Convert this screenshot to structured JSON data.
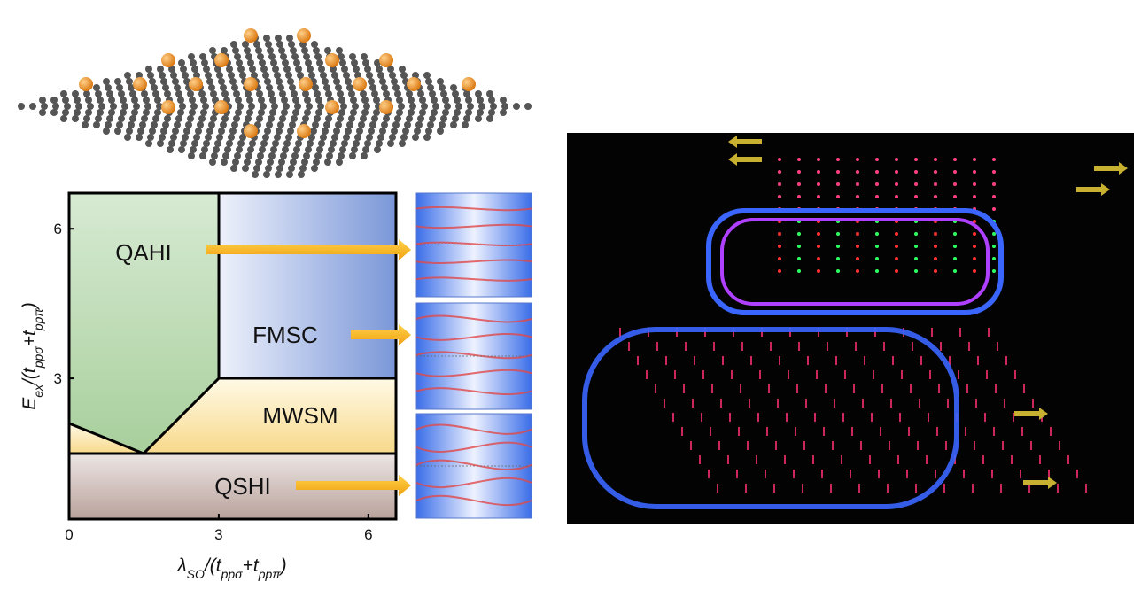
{
  "phase_diagram": {
    "regions": [
      "QAHI",
      "FMSC",
      "MWSM",
      "QSHI"
    ],
    "x_ticks": [
      0,
      3,
      6
    ],
    "y_ticks": [
      3,
      6
    ],
    "x_label": [
      {
        "text": "λ"
      },
      {
        "text": "SO",
        "sub": true
      },
      {
        "text": "/(t"
      },
      {
        "text": "ppσ",
        "sub": true
      },
      {
        "text": "+t"
      },
      {
        "text": "ppπ",
        "sub": true
      },
      {
        "text": ")"
      }
    ],
    "y_label": [
      {
        "text": "E"
      },
      {
        "text": "ex",
        "sub": true
      },
      {
        "text": "/(t"
      },
      {
        "text": "ppσ",
        "sub": true
      },
      {
        "text": "+t"
      },
      {
        "text": "ppπ",
        "sub": true
      },
      {
        "text": ")"
      }
    ]
  }
}
